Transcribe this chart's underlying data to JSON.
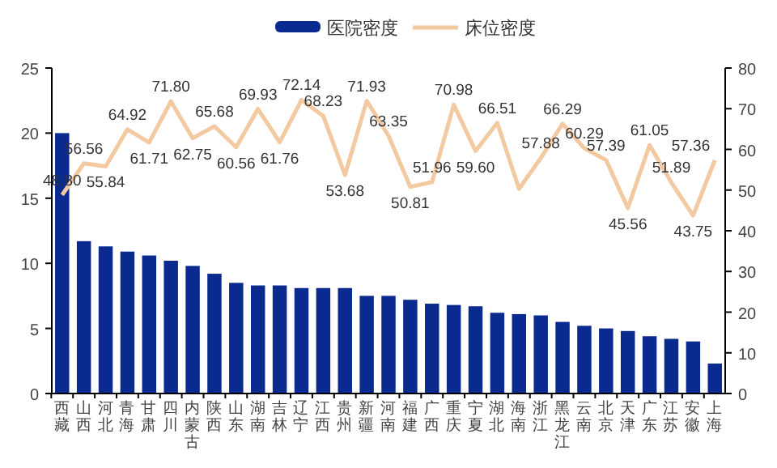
{
  "chart_data": {
    "type": "bar",
    "legend": "top",
    "categories": [
      "西藏",
      "山西",
      "河北",
      "青海",
      "甘肃",
      "四川",
      "内蒙古",
      "陕西",
      "山东",
      "湖南",
      "吉林",
      "辽宁",
      "江西",
      "贵州",
      "新疆",
      "河南",
      "福建",
      "广西",
      "重庆",
      "宁夏",
      "湖北",
      "海南",
      "浙江",
      "黑龙江",
      "云南",
      "北京",
      "天津",
      "广东",
      "江苏",
      "安徽",
      "上海"
    ],
    "series": [
      {
        "name": "医院密度",
        "color": "#0a2a8f",
        "values": [
          20.0,
          11.7,
          11.3,
          10.9,
          10.6,
          10.2,
          9.8,
          9.2,
          8.5,
          8.3,
          8.3,
          8.1,
          8.1,
          8.1,
          7.5,
          7.5,
          7.2,
          6.9,
          6.8,
          6.7,
          6.2,
          6.1,
          6.0,
          5.5,
          5.2,
          5.0,
          4.8,
          4.4,
          4.2,
          4.0,
          2.3
        ]
      },
      {
        "name": "床位密度",
        "type": "line",
        "axis": "y2",
        "color": "#f2c9a0",
        "marker": "none",
        "values": [
          48.8,
          56.56,
          55.84,
          64.92,
          61.71,
          71.8,
          62.75,
          65.68,
          60.56,
          69.93,
          61.76,
          72.14,
          68.23,
          53.68,
          71.93,
          63.35,
          50.81,
          51.96,
          70.98,
          59.6,
          66.51,
          50.3,
          57.88,
          66.29,
          60.29,
          57.39,
          45.56,
          61.05,
          51.89,
          43.75,
          57.36
        ],
        "value_labels": [
          "48.80",
          "56.56",
          "55.84",
          "64.92",
          "61.71",
          "71.80",
          "62.75",
          "65.68",
          "60.56",
          "69.93",
          "61.76",
          "72.14",
          "68.23",
          "53.68",
          "71.93",
          "63.35",
          "50.81",
          "51.96",
          "70.98",
          "59.60",
          "66.51",
          null,
          "57.88",
          "66.29",
          "60.29",
          "57.39",
          "45.56",
          "61.05",
          "51.89",
          "43.75",
          "57.36"
        ]
      }
    ],
    "ylim": [
      0,
      25
    ],
    "yticks": [
      0,
      5,
      10,
      15,
      20,
      25
    ],
    "y2lim": [
      0,
      80
    ],
    "y2ticks": [
      0,
      10,
      20,
      30,
      40,
      50,
      60,
      70,
      80
    ],
    "grid": false
  }
}
